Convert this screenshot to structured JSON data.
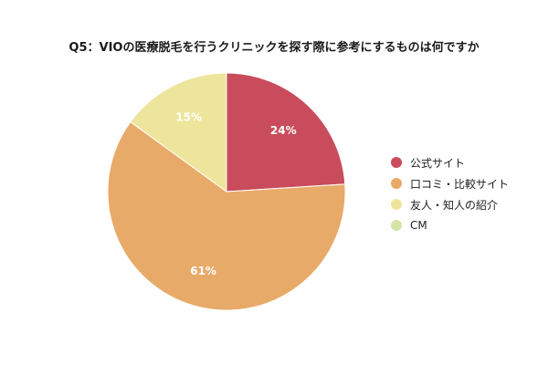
{
  "chart_data": {
    "type": "pie",
    "title": "Q5：VIOの医療脱毛を行うクリニックを探す際に参考にするものは何ですか",
    "slices": [
      {
        "label": "公式サイト",
        "value": 24,
        "display": "24%",
        "color": "#c94c5c"
      },
      {
        "label": "口コミ・比較サイト",
        "value": 61,
        "display": "61%",
        "color": "#e8aa68"
      },
      {
        "label": "友人・知人の紹介",
        "value": 15,
        "display": "15%",
        "color": "#eee59c"
      },
      {
        "label": "CM",
        "value": 0,
        "display": "",
        "color": "#d4e3a8"
      }
    ],
    "legend_position": "right",
    "value_label_color": "#ffffff",
    "slice_border_color": "#ffffff"
  }
}
